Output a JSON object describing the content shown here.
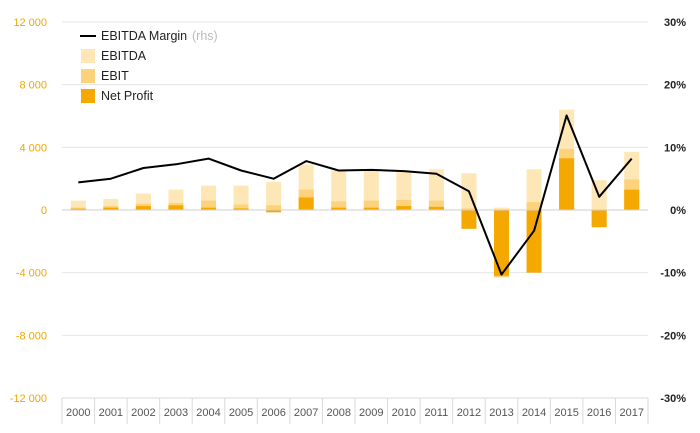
{
  "chart_data": {
    "type": "bar",
    "categories": [
      "2000",
      "2001",
      "2002",
      "2003",
      "2004",
      "2005",
      "2006",
      "2007",
      "2008",
      "2009",
      "2010",
      "2011",
      "2012",
      "2013",
      "2014",
      "2015",
      "2016",
      "2017"
    ],
    "series": [
      {
        "name": "EBITDA",
        "kind": "bar",
        "color": "#fde7b6",
        "values": [
          600,
          700,
          1050,
          1300,
          1550,
          1550,
          1800,
          2900,
          2500,
          2500,
          2450,
          2600,
          2350,
          150,
          2600,
          6400,
          1900,
          3700
        ]
      },
      {
        "name": "EBIT",
        "kind": "bar",
        "color": "#fcd37a",
        "values": [
          150,
          250,
          400,
          450,
          600,
          350,
          300,
          1300,
          550,
          600,
          650,
          600,
          100,
          -4300,
          500,
          3900,
          -1000,
          1950
        ]
      },
      {
        "name": "Net Profit",
        "kind": "bar",
        "color": "#f5a800",
        "values": [
          80,
          150,
          250,
          300,
          150,
          100,
          -150,
          800,
          150,
          150,
          250,
          200,
          -1200,
          -4200,
          -4000,
          3300,
          -1100,
          1300
        ]
      },
      {
        "name": "EBITDA Margin",
        "suffix": "(rhs)",
        "kind": "line",
        "axis": "right",
        "color": "#000000",
        "values": [
          0.044,
          0.05,
          0.067,
          0.073,
          0.082,
          0.063,
          0.05,
          0.078,
          0.063,
          0.064,
          0.062,
          0.058,
          0.03,
          -0.103,
          -0.033,
          0.151,
          0.021,
          0.082
        ]
      }
    ],
    "y_left": {
      "min": -12000,
      "max": 12000,
      "ticks": [
        12000,
        8000,
        4000,
        0,
        -4000,
        -8000,
        -12000
      ],
      "tick_labels": [
        "12 000",
        "8 000",
        "4 000",
        "0",
        "-4 000",
        "-8 000",
        "-12 000"
      ]
    },
    "y_right": {
      "min": -0.3,
      "max": 0.3,
      "ticks": [
        0.3,
        0.2,
        0.1,
        0,
        -0.1,
        -0.2,
        -0.3
      ],
      "tick_labels": [
        "30%",
        "20%",
        "10%",
        "0%",
        "-10%",
        "-20%",
        "-30%"
      ]
    },
    "legend": {
      "position": "top-left"
    },
    "grid": true,
    "title": "",
    "xlabel": "",
    "ylabel": ""
  }
}
